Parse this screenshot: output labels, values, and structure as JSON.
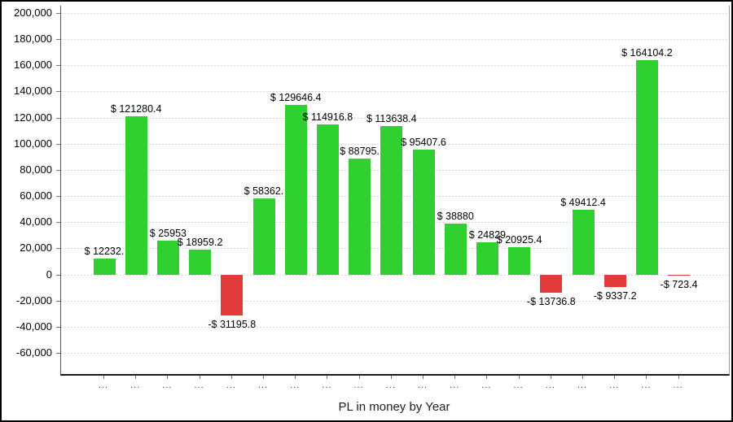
{
  "window": {
    "background": "#ffffff",
    "border_color": "#000000"
  },
  "chart_data": {
    "type": "bar",
    "title": "PL in money by Year",
    "xlabel": "PL in money by Year",
    "ylabel": "",
    "ylim": [
      -60000,
      200000
    ],
    "ytick_step": 20000,
    "ytick_labels": [
      "200,000",
      "180,000",
      "160,000",
      "140,000",
      "120,000",
      "100,000",
      "80,000",
      "60,000",
      "40,000",
      "20,000",
      "0",
      "-20,000",
      "-40,000",
      "-60,000"
    ],
    "grid": "horizontal dotted",
    "legend_position": "none",
    "categories": [
      "...",
      "...",
      "...",
      "...",
      "...",
      "...",
      "...",
      "...",
      "...",
      "...",
      "...",
      "...",
      "...",
      "...",
      "...",
      "...",
      "...",
      "...",
      "..."
    ],
    "values": [
      12232,
      121280.4,
      25953,
      18959.2,
      -31195.8,
      58362,
      129646.4,
      114916.8,
      88795,
      113638.4,
      95407.6,
      38880,
      24829,
      20925.4,
      -13736.8,
      49412.4,
      -9337.2,
      164104.2,
      -723.4
    ],
    "bar_labels": [
      "$ 12232.",
      "$ 121280.4",
      "$ 25953",
      "$ 18959.2",
      "-$ 31195.8",
      "$ 58362.",
      "$ 129646.4",
      "$ 114916.8",
      "$ 88795.",
      "$ 113638.4",
      "$ 95407.6",
      "$ 38880",
      "$ 24829",
      "$ 20925.4",
      "-$ 13736.8",
      "$ 49412.4",
      "-$ 9337.2",
      "$ 164104.2",
      "-$ 723.4"
    ],
    "colors": {
      "positive_bar": "#30d030",
      "negative_bar": "#e23b3b",
      "grid": "#d9d9d9",
      "axis": "#555555",
      "label_text": "#000000"
    }
  }
}
